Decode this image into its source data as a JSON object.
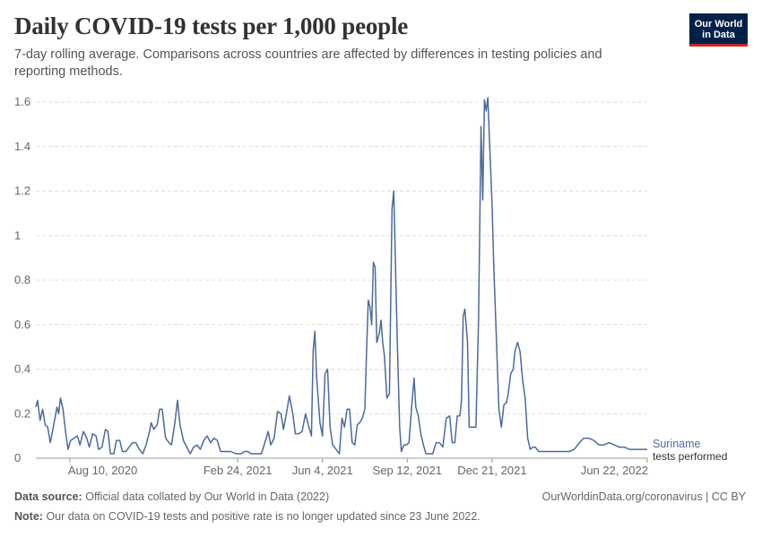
{
  "header": {
    "title": "Daily COVID-19 tests per 1,000 people",
    "subtitle": "7-day rolling average. Comparisons across countries are affected by differences in testing policies and reporting methods.",
    "logo_line1": "Our World",
    "logo_line2": "in Data"
  },
  "footer": {
    "source_label": "Data source:",
    "source_text": "Official data collated by Our World in Data (2022)",
    "url_text": "OurWorldinData.org/coronavirus | CC BY",
    "note_label": "Note:",
    "note_text": "Our data on COVID-19 tests and positive rate is no longer updated since 23 June 2022."
  },
  "colors": {
    "series": "#4c6a9c",
    "grid": "#dddddd",
    "axis": "#666666"
  },
  "chart_data": {
    "type": "line",
    "title": "Daily COVID-19 tests per 1,000 people",
    "xlabel": "",
    "ylabel": "",
    "x_range": [
      "2020-07-01",
      "2022-06-22"
    ],
    "ylim": [
      0,
      1.6
    ],
    "y_ticks": [
      0,
      0.2,
      0.4,
      0.6,
      0.8,
      1,
      1.2,
      1.4,
      1.6
    ],
    "x_ticks": [
      "Aug 10, 2020",
      "Feb 24, 2021",
      "Jun 4, 2021",
      "Sep 12, 2021",
      "Dec 21, 2021",
      "Jun 22, 2022"
    ],
    "x_tick_dates": [
      "2020-08-10",
      "2021-02-24",
      "2021-06-04",
      "2021-09-12",
      "2021-12-21",
      "2022-06-22"
    ],
    "grid": true,
    "series": [
      {
        "name": "Suriname",
        "end_label_sub": "tests performed",
        "points": [
          [
            "2020-07-01",
            0.23
          ],
          [
            "2020-07-03",
            0.26
          ],
          [
            "2020-07-06",
            0.17
          ],
          [
            "2020-07-09",
            0.22
          ],
          [
            "2020-07-12",
            0.15
          ],
          [
            "2020-07-15",
            0.14
          ],
          [
            "2020-07-18",
            0.07
          ],
          [
            "2020-07-22",
            0.15
          ],
          [
            "2020-07-26",
            0.23
          ],
          [
            "2020-07-28",
            0.2
          ],
          [
            "2020-07-30",
            0.27
          ],
          [
            "2020-08-02",
            0.22
          ],
          [
            "2020-08-05",
            0.12
          ],
          [
            "2020-08-08",
            0.04
          ],
          [
            "2020-08-11",
            0.08
          ],
          [
            "2020-08-15",
            0.09
          ],
          [
            "2020-08-19",
            0.1
          ],
          [
            "2020-08-22",
            0.06
          ],
          [
            "2020-08-26",
            0.12
          ],
          [
            "2020-08-30",
            0.09
          ],
          [
            "2020-09-02",
            0.05
          ],
          [
            "2020-09-06",
            0.11
          ],
          [
            "2020-09-10",
            0.1
          ],
          [
            "2020-09-13",
            0.04
          ],
          [
            "2020-09-17",
            0.05
          ],
          [
            "2020-09-21",
            0.13
          ],
          [
            "2020-09-24",
            0.12
          ],
          [
            "2020-09-27",
            0.02
          ],
          [
            "2020-10-01",
            0.02
          ],
          [
            "2020-10-04",
            0.08
          ],
          [
            "2020-10-08",
            0.08
          ],
          [
            "2020-10-11",
            0.03
          ],
          [
            "2020-10-15",
            0.03
          ],
          [
            "2020-10-19",
            0.05
          ],
          [
            "2020-10-23",
            0.07
          ],
          [
            "2020-10-27",
            0.07
          ],
          [
            "2020-10-31",
            0.04
          ],
          [
            "2020-11-04",
            0.02
          ],
          [
            "2020-11-08",
            0.06
          ],
          [
            "2020-11-12",
            0.12
          ],
          [
            "2020-11-14",
            0.16
          ],
          [
            "2020-11-17",
            0.13
          ],
          [
            "2020-11-21",
            0.15
          ],
          [
            "2020-11-24",
            0.22
          ],
          [
            "2020-11-27",
            0.22
          ],
          [
            "2020-12-01",
            0.09
          ],
          [
            "2020-12-05",
            0.07
          ],
          [
            "2020-12-08",
            0.06
          ],
          [
            "2020-12-12",
            0.16
          ],
          [
            "2020-12-15",
            0.26
          ],
          [
            "2020-12-18",
            0.15
          ],
          [
            "2020-12-22",
            0.08
          ],
          [
            "2020-12-26",
            0.05
          ],
          [
            "2020-12-30",
            0.02
          ],
          [
            "2021-01-03",
            0.05
          ],
          [
            "2021-01-07",
            0.06
          ],
          [
            "2021-01-11",
            0.04
          ],
          [
            "2021-01-15",
            0.08
          ],
          [
            "2021-01-19",
            0.1
          ],
          [
            "2021-01-23",
            0.07
          ],
          [
            "2021-01-27",
            0.09
          ],
          [
            "2021-01-31",
            0.08
          ],
          [
            "2021-02-04",
            0.03
          ],
          [
            "2021-02-10",
            0.03
          ],
          [
            "2021-02-16",
            0.03
          ],
          [
            "2021-02-22",
            0.02
          ],
          [
            "2021-02-28",
            0.02
          ],
          [
            "2021-03-04",
            0.03
          ],
          [
            "2021-03-08",
            0.03
          ],
          [
            "2021-03-12",
            0.02
          ],
          [
            "2021-03-16",
            0.02
          ],
          [
            "2021-03-20",
            0.02
          ],
          [
            "2021-03-24",
            0.02
          ],
          [
            "2021-03-28",
            0.07
          ],
          [
            "2021-04-01",
            0.12
          ],
          [
            "2021-04-04",
            0.06
          ],
          [
            "2021-04-08",
            0.09
          ],
          [
            "2021-04-12",
            0.21
          ],
          [
            "2021-04-16",
            0.2
          ],
          [
            "2021-04-19",
            0.13
          ],
          [
            "2021-04-22",
            0.19
          ],
          [
            "2021-04-26",
            0.28
          ],
          [
            "2021-04-30",
            0.2
          ],
          [
            "2021-05-03",
            0.11
          ],
          [
            "2021-05-07",
            0.11
          ],
          [
            "2021-05-11",
            0.12
          ],
          [
            "2021-05-15",
            0.2
          ],
          [
            "2021-05-19",
            0.14
          ],
          [
            "2021-05-22",
            0.1
          ],
          [
            "2021-05-24",
            0.48
          ],
          [
            "2021-05-26",
            0.57
          ],
          [
            "2021-05-28",
            0.37
          ],
          [
            "2021-06-01",
            0.16
          ],
          [
            "2021-06-04",
            0.1
          ],
          [
            "2021-06-07",
            0.38
          ],
          [
            "2021-06-10",
            0.4
          ],
          [
            "2021-06-13",
            0.14
          ],
          [
            "2021-06-16",
            0.06
          ],
          [
            "2021-06-20",
            0.04
          ],
          [
            "2021-06-24",
            0.02
          ],
          [
            "2021-06-27",
            0.18
          ],
          [
            "2021-06-30",
            0.14
          ],
          [
            "2021-07-03",
            0.22
          ],
          [
            "2021-07-06",
            0.22
          ],
          [
            "2021-07-09",
            0.07
          ],
          [
            "2021-07-12",
            0.06
          ],
          [
            "2021-07-15",
            0.15
          ],
          [
            "2021-07-18",
            0.16
          ],
          [
            "2021-07-21",
            0.18
          ],
          [
            "2021-07-24",
            0.22
          ],
          [
            "2021-07-26",
            0.48
          ],
          [
            "2021-07-28",
            0.71
          ],
          [
            "2021-07-30",
            0.68
          ],
          [
            "2021-08-01",
            0.6
          ],
          [
            "2021-08-03",
            0.88
          ],
          [
            "2021-08-05",
            0.86
          ],
          [
            "2021-08-07",
            0.52
          ],
          [
            "2021-08-10",
            0.56
          ],
          [
            "2021-08-12",
            0.62
          ],
          [
            "2021-08-14",
            0.52
          ],
          [
            "2021-08-16",
            0.46
          ],
          [
            "2021-08-19",
            0.27
          ],
          [
            "2021-08-22",
            0.29
          ],
          [
            "2021-08-25",
            1.12
          ],
          [
            "2021-08-27",
            1.2
          ],
          [
            "2021-08-29",
            0.88
          ],
          [
            "2021-08-31",
            0.55
          ],
          [
            "2021-09-03",
            0.14
          ],
          [
            "2021-09-05",
            0.03
          ],
          [
            "2021-09-08",
            0.06
          ],
          [
            "2021-09-11",
            0.06
          ],
          [
            "2021-09-14",
            0.07
          ],
          [
            "2021-09-17",
            0.22
          ],
          [
            "2021-09-20",
            0.36
          ],
          [
            "2021-09-22",
            0.23
          ],
          [
            "2021-09-25",
            0.19
          ],
          [
            "2021-09-28",
            0.11
          ],
          [
            "2021-10-01",
            0.06
          ],
          [
            "2021-10-04",
            0.02
          ],
          [
            "2021-10-08",
            0.02
          ],
          [
            "2021-10-12",
            0.02
          ],
          [
            "2021-10-16",
            0.07
          ],
          [
            "2021-10-20",
            0.07
          ],
          [
            "2021-10-24",
            0.05
          ],
          [
            "2021-10-28",
            0.18
          ],
          [
            "2021-11-01",
            0.19
          ],
          [
            "2021-11-04",
            0.07
          ],
          [
            "2021-11-07",
            0.07
          ],
          [
            "2021-11-10",
            0.19
          ],
          [
            "2021-11-13",
            0.19
          ],
          [
            "2021-11-15",
            0.26
          ],
          [
            "2021-11-17",
            0.64
          ],
          [
            "2021-11-19",
            0.67
          ],
          [
            "2021-11-22",
            0.52
          ],
          [
            "2021-11-24",
            0.14
          ],
          [
            "2021-11-28",
            0.14
          ],
          [
            "2021-12-02",
            0.14
          ],
          [
            "2021-12-05",
            0.62
          ],
          [
            "2021-12-08",
            1.49
          ],
          [
            "2021-12-10",
            1.16
          ],
          [
            "2021-12-12",
            1.61
          ],
          [
            "2021-12-14",
            1.56
          ],
          [
            "2021-12-16",
            1.62
          ],
          [
            "2021-12-18",
            1.42
          ],
          [
            "2021-12-21",
            1.14
          ],
          [
            "2021-12-23",
            0.86
          ],
          [
            "2021-12-26",
            0.55
          ],
          [
            "2021-12-29",
            0.22
          ],
          [
            "2022-01-01",
            0.14
          ],
          [
            "2022-01-04",
            0.24
          ],
          [
            "2022-01-07",
            0.25
          ],
          [
            "2022-01-09",
            0.29
          ],
          [
            "2022-01-12",
            0.38
          ],
          [
            "2022-01-15",
            0.4
          ],
          [
            "2022-01-17",
            0.48
          ],
          [
            "2022-01-20",
            0.52
          ],
          [
            "2022-01-23",
            0.48
          ],
          [
            "2022-01-26",
            0.35
          ],
          [
            "2022-01-29",
            0.27
          ],
          [
            "2022-02-01",
            0.09
          ],
          [
            "2022-02-04",
            0.04
          ],
          [
            "2022-02-07",
            0.05
          ],
          [
            "2022-02-10",
            0.05
          ],
          [
            "2022-02-14",
            0.03
          ],
          [
            "2022-02-20",
            0.03
          ],
          [
            "2022-02-26",
            0.03
          ],
          [
            "2022-03-04",
            0.03
          ],
          [
            "2022-03-10",
            0.03
          ],
          [
            "2022-03-16",
            0.03
          ],
          [
            "2022-03-22",
            0.03
          ],
          [
            "2022-03-28",
            0.04
          ],
          [
            "2022-04-03",
            0.07
          ],
          [
            "2022-04-08",
            0.09
          ],
          [
            "2022-04-14",
            0.09
          ],
          [
            "2022-04-20",
            0.08
          ],
          [
            "2022-04-26",
            0.06
          ],
          [
            "2022-05-02",
            0.06
          ],
          [
            "2022-05-08",
            0.07
          ],
          [
            "2022-05-14",
            0.06
          ],
          [
            "2022-05-20",
            0.05
          ],
          [
            "2022-05-26",
            0.05
          ],
          [
            "2022-06-01",
            0.04
          ],
          [
            "2022-06-08",
            0.04
          ],
          [
            "2022-06-14",
            0.04
          ],
          [
            "2022-06-22",
            0.04
          ]
        ]
      }
    ]
  }
}
